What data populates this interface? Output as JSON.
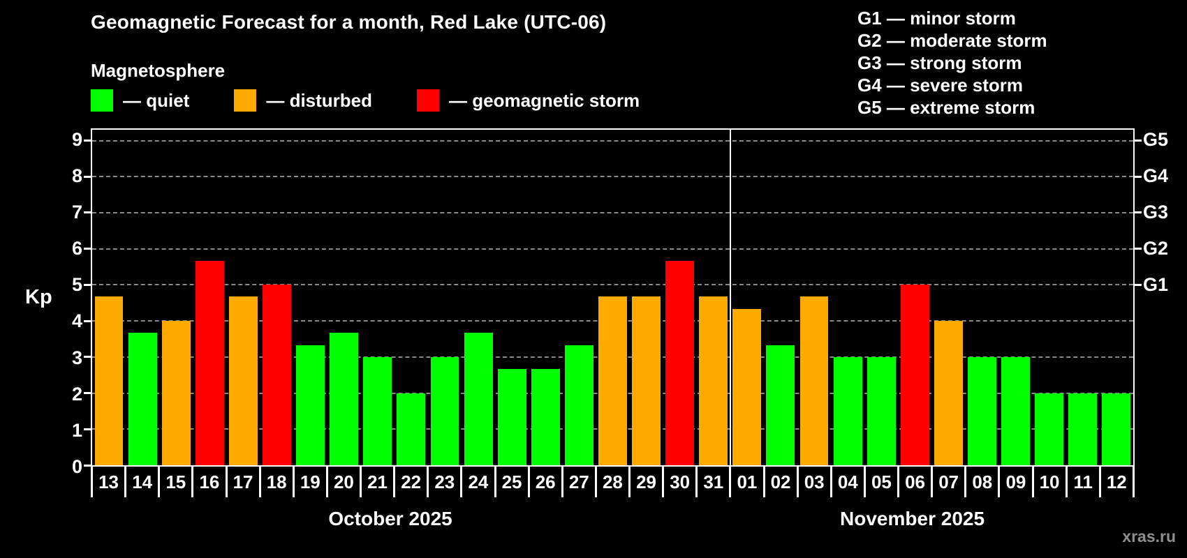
{
  "header": {
    "title": "Geomagnetic Forecast for a month, Red Lake (UTC-06)",
    "subtitle": "Magnetosphere"
  },
  "legend": {
    "color_map": {
      "quiet": "#00ff00",
      "disturbed": "#ffaa00",
      "storm": "#ff0000"
    },
    "items": [
      {
        "label": "— quiet",
        "status": "quiet"
      },
      {
        "label": "— disturbed",
        "status": "disturbed"
      },
      {
        "label": "— geomagnetic storm",
        "status": "storm"
      }
    ]
  },
  "storm_scale": {
    "items": [
      "G1 — minor storm",
      "G2 — moderate storm",
      "G3 — strong storm",
      "G4 — severe storm",
      "G5 — extreme storm"
    ]
  },
  "chart_data": {
    "type": "bar",
    "title": "Geomagnetic Forecast for a month, Red Lake (UTC-06)",
    "ylabel": "Kp",
    "ylim": [
      0,
      9
    ],
    "yticks": [
      0,
      1,
      2,
      3,
      4,
      5,
      6,
      7,
      8,
      9
    ],
    "grid": "dashed horizontal",
    "right_axis": [
      {
        "label": "G1",
        "value": 5
      },
      {
        "label": "G2",
        "value": 6
      },
      {
        "label": "G3",
        "value": 7
      },
      {
        "label": "G4",
        "value": 8
      },
      {
        "label": "G5",
        "value": 9
      }
    ],
    "months": [
      {
        "label": "October 2025",
        "days": [
          {
            "day": "13",
            "value": 4.67,
            "status": "disturbed"
          },
          {
            "day": "14",
            "value": 3.67,
            "status": "quiet"
          },
          {
            "day": "15",
            "value": 4.0,
            "status": "disturbed"
          },
          {
            "day": "16",
            "value": 5.67,
            "status": "storm"
          },
          {
            "day": "17",
            "value": 4.67,
            "status": "disturbed"
          },
          {
            "day": "18",
            "value": 5.0,
            "status": "storm"
          },
          {
            "day": "19",
            "value": 3.33,
            "status": "quiet"
          },
          {
            "day": "20",
            "value": 3.67,
            "status": "quiet"
          },
          {
            "day": "21",
            "value": 3.0,
            "status": "quiet"
          },
          {
            "day": "22",
            "value": 2.0,
            "status": "quiet"
          },
          {
            "day": "23",
            "value": 3.0,
            "status": "quiet"
          },
          {
            "day": "24",
            "value": 3.67,
            "status": "quiet"
          },
          {
            "day": "25",
            "value": 2.67,
            "status": "quiet"
          },
          {
            "day": "26",
            "value": 2.67,
            "status": "quiet"
          },
          {
            "day": "27",
            "value": 3.33,
            "status": "quiet"
          },
          {
            "day": "28",
            "value": 4.67,
            "status": "disturbed"
          },
          {
            "day": "29",
            "value": 4.67,
            "status": "disturbed"
          },
          {
            "day": "30",
            "value": 5.67,
            "status": "storm"
          },
          {
            "day": "31",
            "value": 4.67,
            "status": "disturbed"
          }
        ]
      },
      {
        "label": "November 2025",
        "days": [
          {
            "day": "01",
            "value": 4.33,
            "status": "disturbed"
          },
          {
            "day": "02",
            "value": 3.33,
            "status": "quiet"
          },
          {
            "day": "03",
            "value": 4.67,
            "status": "disturbed"
          },
          {
            "day": "04",
            "value": 3.0,
            "status": "quiet"
          },
          {
            "day": "05",
            "value": 3.0,
            "status": "quiet"
          },
          {
            "day": "06",
            "value": 5.0,
            "status": "storm"
          },
          {
            "day": "07",
            "value": 4.0,
            "status": "disturbed"
          },
          {
            "day": "08",
            "value": 3.0,
            "status": "quiet"
          },
          {
            "day": "09",
            "value": 3.0,
            "status": "quiet"
          },
          {
            "day": "10",
            "value": 2.0,
            "status": "quiet"
          },
          {
            "day": "11",
            "value": 2.0,
            "status": "quiet"
          },
          {
            "day": "12",
            "value": 2.0,
            "status": "quiet"
          }
        ]
      }
    ]
  },
  "watermark": "xras.ru"
}
